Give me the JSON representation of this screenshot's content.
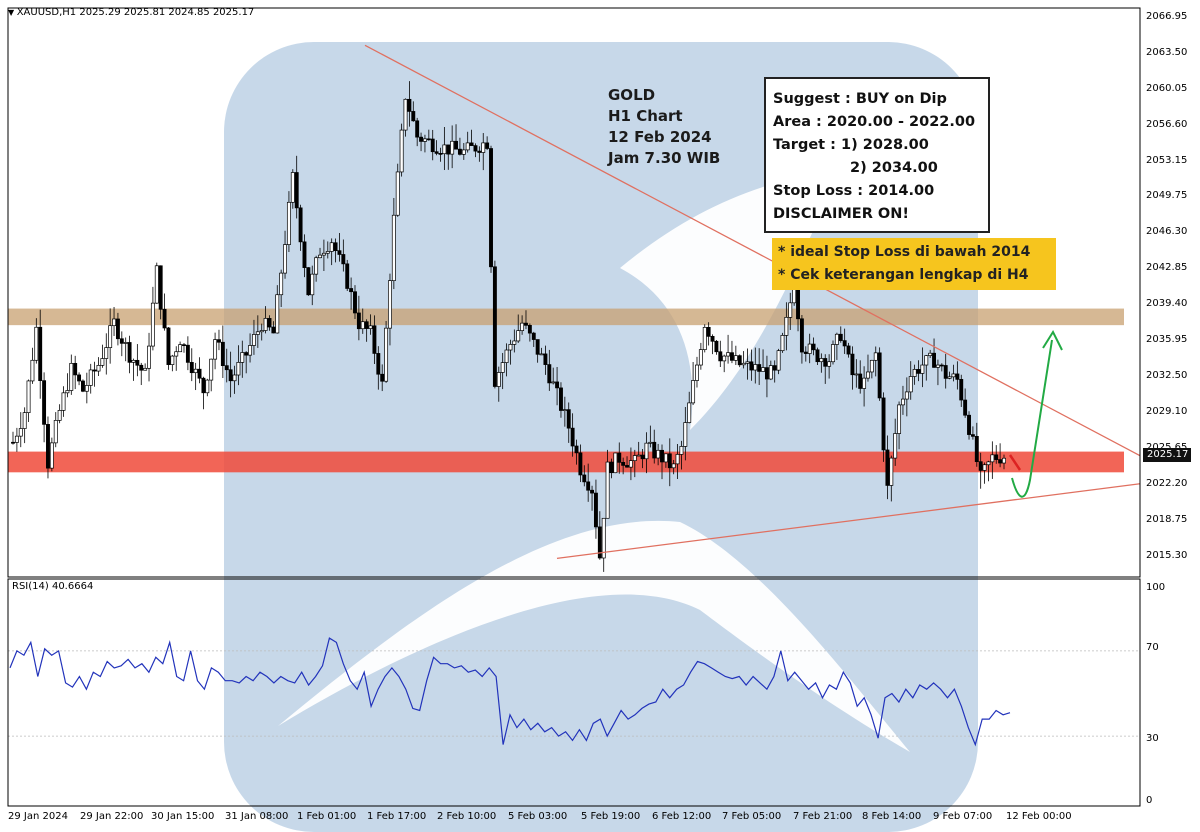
{
  "header": {
    "symbol": "XAUUSD,H1",
    "ohlc": "2025.29 2025.81 2024.85 2025.17"
  },
  "rsi": {
    "label": "RSI(14) 40.6664",
    "levels": [
      "100",
      "70",
      "30",
      "0"
    ]
  },
  "note_gold": [
    "GOLD",
    "H1 Chart",
    "12 Feb 2024",
    "Jam 7.30 WIB"
  ],
  "suggestion_box": {
    "lines": [
      "Suggest : BUY on Dip",
      "Area : 2020.00 - 2022.00",
      "Target  : 1) 2028.00",
      "2) 2034.00",
      "Stop Loss : 2014.00",
      "DISCLAIMER ON!"
    ]
  },
  "yellow_note": [
    "* ideal Stop Loss di bawah 2014",
    "* Cek keterangan lengkap di H4"
  ],
  "current_price": "2025.17",
  "price_axis": {
    "ticks": [
      "2066.95",
      "2063.50",
      "2060.05",
      "2056.60",
      "2053.15",
      "2049.75",
      "2046.30",
      "2042.85",
      "2039.40",
      "2035.95",
      "2032.50",
      "2029.10",
      "2025.65",
      "2022.20",
      "2018.75",
      "2015.30"
    ]
  },
  "time_axis": [
    "29 Jan 2024",
    "29 Jan 22:00",
    "30 Jan 15:00",
    "31 Jan 08:00",
    "1 Feb 01:00",
    "1 Feb 17:00",
    "2 Feb 10:00",
    "5 Feb 03:00",
    "5 Feb 19:00",
    "6 Feb 12:00",
    "7 Feb 05:00",
    "7 Feb 21:00",
    "8 Feb 14:00",
    "9 Feb 07:00",
    "12 Feb 00:00"
  ],
  "colors": {
    "resistance_zone": "#c8a070",
    "support_zone": "#f04a3a",
    "trendline": "#e07060",
    "rsi_line": "#2233bb",
    "up_arrow": "#22aa44",
    "down_arrow": "#dd2222",
    "watermark": "#b4cbe2"
  },
  "chart_data": [
    {
      "type": "candlestick",
      "symbol": "XAUUSD",
      "timeframe": "H1",
      "ylim": [
        2013.5,
        2068.4
      ],
      "x_labels": [
        "29 Jan 2024",
        "29 Jan 22:00",
        "30 Jan 15:00",
        "31 Jan 08:00",
        "1 Feb 01:00",
        "1 Feb 17:00",
        "2 Feb 10:00",
        "5 Feb 03:00",
        "5 Feb 19:00",
        "6 Feb 12:00",
        "7 Feb 05:00",
        "7 Feb 21:00",
        "8 Feb 14:00",
        "9 Feb 07:00",
        "12 Feb 00:00"
      ],
      "path_points": [
        [
          0,
          2026.5
        ],
        [
          3,
          2029.5
        ],
        [
          6,
          2037.5
        ],
        [
          9,
          2024.5
        ],
        [
          12,
          2029.5
        ],
        [
          15,
          2033.5
        ],
        [
          18,
          2031.5
        ],
        [
          22,
          2034
        ],
        [
          26,
          2038
        ],
        [
          30,
          2035
        ],
        [
          34,
          2033
        ],
        [
          37,
          2043
        ],
        [
          40,
          2034
        ],
        [
          43,
          2036.5
        ],
        [
          46,
          2034
        ],
        [
          49,
          2031.5
        ],
        [
          52,
          2036.5
        ],
        [
          56,
          2032.5
        ],
        [
          60,
          2035
        ],
        [
          64,
          2038
        ],
        [
          67,
          2037
        ],
        [
          72,
          2052
        ],
        [
          76,
          2041
        ],
        [
          79,
          2045
        ],
        [
          82,
          2046
        ],
        [
          86,
          2042
        ],
        [
          89,
          2038
        ],
        [
          92,
          2037
        ],
        [
          95,
          2032
        ],
        [
          98,
          2048
        ],
        [
          101,
          2060
        ],
        [
          104,
          2056
        ],
        [
          110,
          2055
        ],
        [
          116,
          2054.5
        ],
        [
          122,
          2055.5
        ],
        [
          124,
          2032.5
        ],
        [
          128,
          2036
        ],
        [
          131,
          2038
        ],
        [
          134,
          2036
        ],
        [
          137,
          2034
        ],
        [
          140,
          2031
        ],
        [
          143,
          2028
        ],
        [
          146,
          2024
        ],
        [
          149,
          2022
        ],
        [
          151,
          2015.5
        ],
        [
          153,
          2024
        ],
        [
          156,
          2025
        ],
        [
          160,
          2024.5
        ],
        [
          163,
          2026
        ],
        [
          167,
          2025
        ],
        [
          170,
          2024
        ],
        [
          172,
          2026
        ],
        [
          175,
          2032
        ],
        [
          178,
          2038
        ],
        [
          182,
          2035
        ],
        [
          187,
          2034
        ],
        [
          192,
          2033.5
        ],
        [
          196,
          2033
        ],
        [
          199,
          2038
        ],
        [
          201,
          2042
        ],
        [
          203,
          2036
        ],
        [
          206,
          2035
        ],
        [
          210,
          2034.5
        ],
        [
          213,
          2037
        ],
        [
          216,
          2033
        ],
        [
          219,
          2032
        ],
        [
          222,
          2035
        ],
        [
          225,
          2022
        ],
        [
          228,
          2030
        ],
        [
          231,
          2033
        ],
        [
          234,
          2034
        ],
        [
          237,
          2034.5
        ],
        [
          240,
          2033
        ],
        [
          243,
          2032.5
        ],
        [
          246,
          2028
        ],
        [
          249,
          2023
        ],
        [
          252,
          2025
        ],
        [
          255,
          2025.2
        ]
      ],
      "zones": [
        {
          "name": "resistance",
          "from": 2037.8,
          "to": 2039.4
        },
        {
          "name": "support",
          "from": 2023.6,
          "to": 2025.6
        }
      ],
      "trendlines": [
        {
          "from": [
            "1 Feb 17:00",
            2064.8
          ],
          "to": [
            "12 Feb 00:00",
            2025.17
          ]
        },
        {
          "from": [
            "5 Feb 03:00",
            2015.3
          ],
          "to": [
            "12 Feb 00:00",
            2022.2
          ]
        }
      ]
    },
    {
      "type": "line",
      "name": "RSI(14)",
      "ylim": [
        0,
        100
      ],
      "levels": [
        70,
        30
      ],
      "values": [
        62,
        70,
        68,
        74,
        58,
        71,
        68,
        70,
        55,
        53,
        58,
        52,
        60,
        58,
        65,
        62,
        63,
        66,
        62,
        64,
        60,
        67,
        64,
        74,
        58,
        56,
        70,
        56,
        52,
        62,
        60,
        56,
        56,
        55,
        58,
        56,
        60,
        58,
        55,
        58,
        56,
        55,
        60,
        54,
        58,
        63,
        76,
        74,
        64,
        56,
        52,
        60,
        44,
        52,
        58,
        62,
        58,
        52,
        43,
        42,
        56,
        67,
        64,
        64,
        62,
        63,
        60,
        61,
        58,
        62,
        58,
        26,
        40,
        34,
        38,
        33,
        36,
        32,
        34,
        30,
        32,
        28,
        33,
        28,
        36,
        38,
        30,
        36,
        42,
        38,
        40,
        43,
        45,
        46,
        52,
        48,
        52,
        54,
        60,
        65,
        64,
        62,
        60,
        58,
        57,
        58,
        54,
        58,
        55,
        52,
        58,
        70,
        56,
        60,
        56,
        52,
        55,
        48,
        54,
        52,
        60,
        55,
        44,
        48,
        40,
        29,
        48,
        50,
        46,
        52,
        48,
        54,
        52,
        55,
        52,
        48,
        52,
        44,
        34,
        26,
        38,
        38,
        42,
        40,
        41
      ]
    }
  ]
}
